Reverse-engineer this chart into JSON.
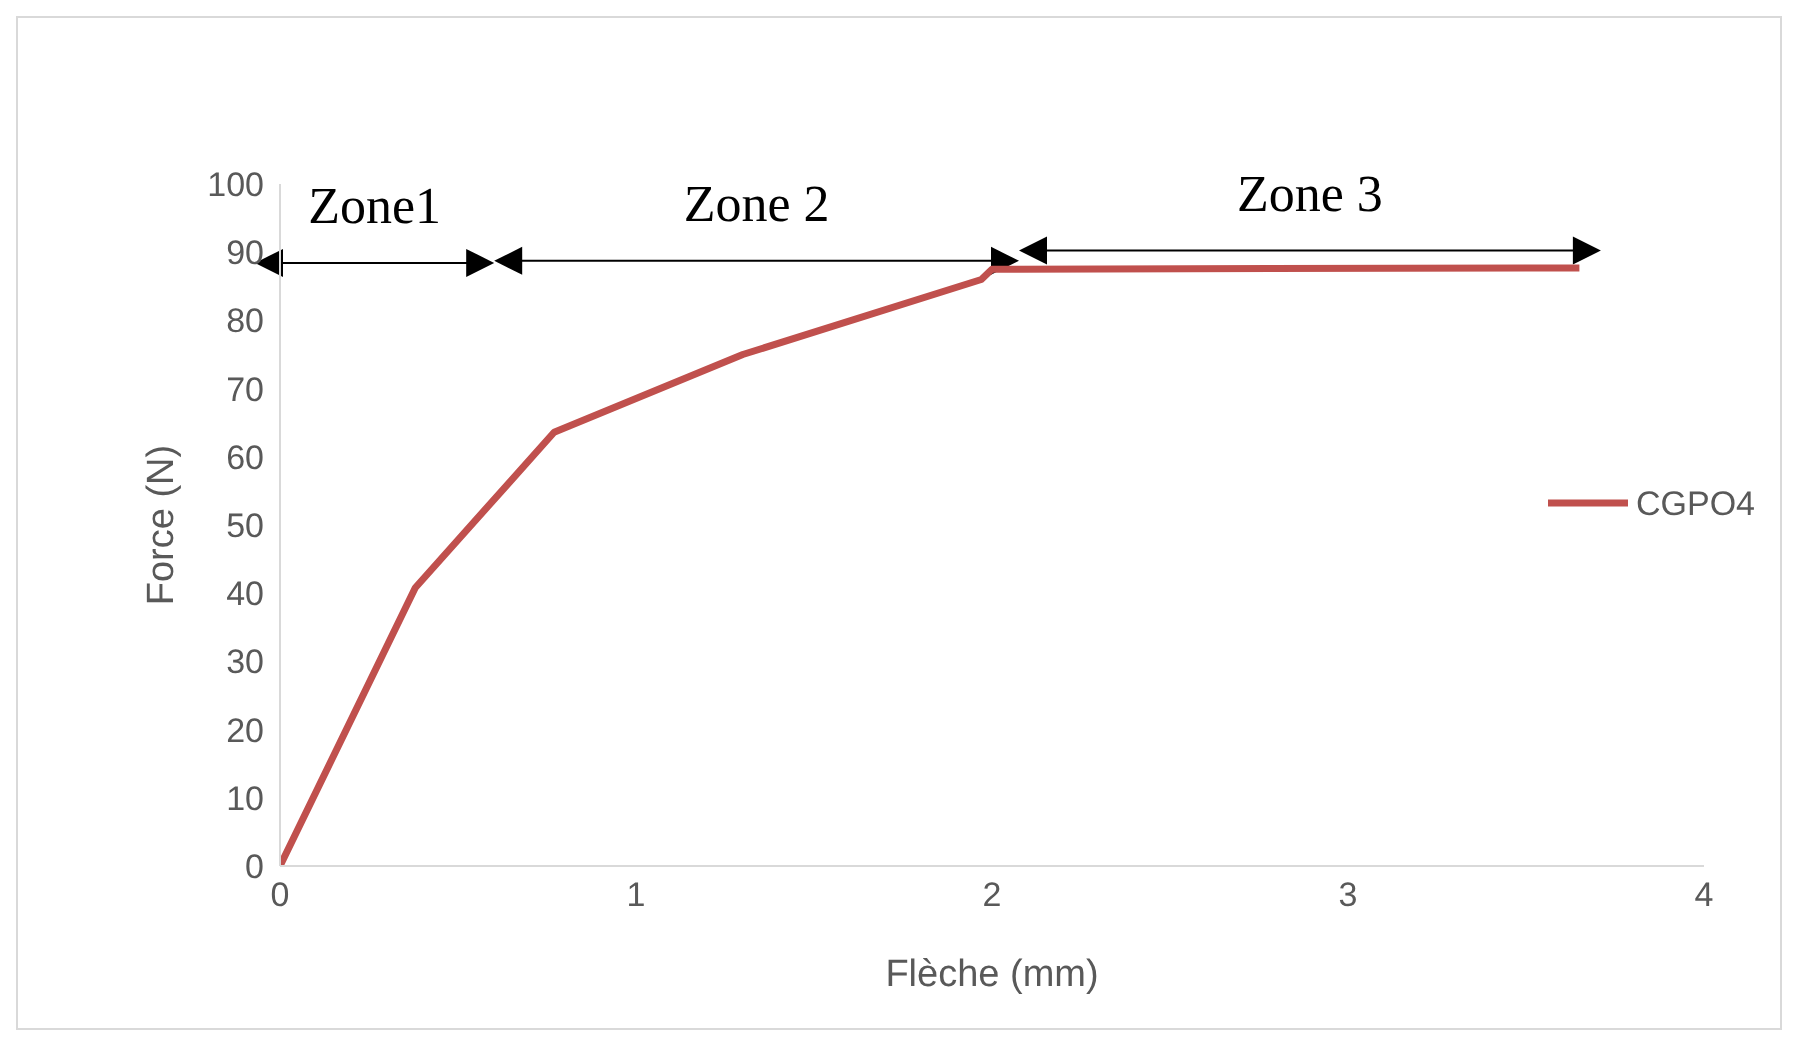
{
  "chart_data": {
    "type": "line",
    "xlabel": "Flèche (mm)",
    "ylabel": "Force (N)",
    "annotations": [
      "Zone1",
      "Zone 2",
      "Zone 3"
    ],
    "series": [
      {
        "name": "CGPO4",
        "color": "#c0504d",
        "x": [
          0,
          0.38,
          0.77,
          1.3,
          1.97,
          2.0,
          3.65
        ],
        "values": [
          0,
          40.8,
          63.6,
          75,
          86,
          87.5,
          87.7
        ]
      }
    ],
    "xlim": [
      0,
      4
    ],
    "xticks": [
      0,
      1,
      2,
      3,
      4
    ],
    "ylim": [
      0,
      100
    ],
    "yticks": [
      0,
      10,
      20,
      30,
      40,
      50,
      60,
      70,
      80,
      90,
      100
    ],
    "grid": false,
    "legend": "right",
    "marker": "none",
    "line_style": "solid"
  }
}
